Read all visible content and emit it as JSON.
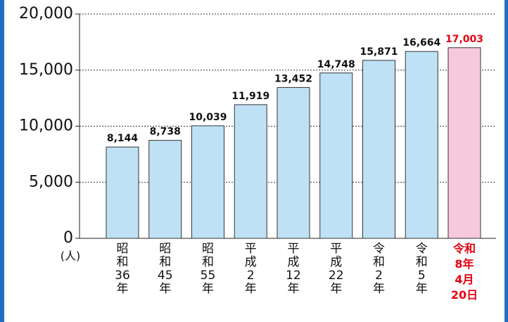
{
  "chart_data": {
    "type": "bar",
    "categories": [
      "昭和36年",
      "昭和45年",
      "昭和55年",
      "平成2年",
      "平成12年",
      "平成22年",
      "令和2年",
      "令和5年",
      "令和8年4月20日"
    ],
    "values": [
      8144,
      8738,
      10039,
      11919,
      13452,
      14748,
      15871,
      16664,
      17003
    ],
    "value_labels": [
      "8,144",
      "8,738",
      "10,039",
      "11,919",
      "13,452",
      "14,748",
      "15,871",
      "16,664",
      "17,003"
    ],
    "color": "#bfe1f6",
    "highlight": 8,
    "highlight_color": "#f7c9dc",
    "highlight_text_color": "#e60012",
    "y_unit": "(人)",
    "ylim": [
      0,
      20000
    ],
    "yticks": [
      0,
      {
        "value": 5000,
        "label": "5,000"
      },
      {
        "value": 10000,
        "label": "10,000"
      },
      {
        "value": 15000,
        "label": "15,000"
      },
      {
        "value": 20000,
        "label": "20,000"
      }
    ],
    "grid": true
  }
}
